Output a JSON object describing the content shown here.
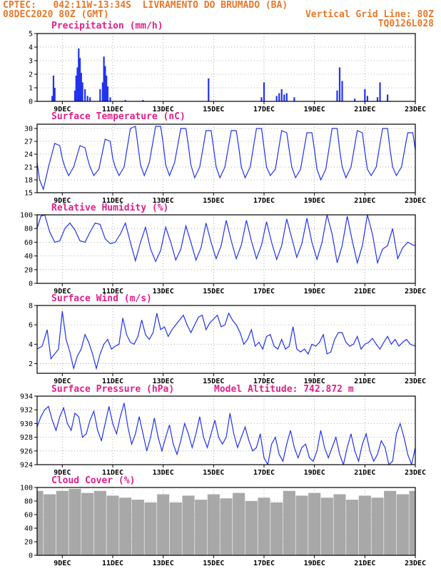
{
  "header": {
    "line1": "CPTEC:   042:11W-13:34S  LIVRAMENTO DO BRUMADO (BA)",
    "line2": "08DEC2020 80Z (GMT)",
    "right1": "Vertical Grid Line: 80Z",
    "right2": "TQ0126L028"
  },
  "colors": {
    "line": "#2233ee",
    "bar": "#2233ee",
    "cloud": "#a8a8a8",
    "title": "#e0208a",
    "header": "#e8782a"
  },
  "x_ticks": [
    "9DEC",
    "11DEC",
    "13DEC",
    "15DEC",
    "17DEC",
    "19DEC",
    "21DEC",
    "23DEC"
  ],
  "chart_data": [
    {
      "type": "bar",
      "title": "Precipitation (mm/h)",
      "x_range": [
        0,
        15
      ],
      "ylim": [
        0,
        5
      ],
      "yticks": [
        0,
        1,
        2,
        3,
        4,
        5
      ],
      "x": [
        0.6,
        0.65,
        0.7,
        1.5,
        1.55,
        1.6,
        1.65,
        1.7,
        1.75,
        1.8,
        1.9,
        2.0,
        2.1,
        2.5,
        2.6,
        2.65,
        2.7,
        2.75,
        2.8,
        2.9,
        3.5,
        4.2,
        6.8,
        8.9,
        9.0,
        9.5,
        9.6,
        9.7,
        9.8,
        9.9,
        10.2,
        11.9,
        12.0,
        12.1,
        12.6,
        13.0,
        13.1,
        13.5,
        13.6,
        13.9
      ],
      "values": [
        0.4,
        1.9,
        1.0,
        0.8,
        1.9,
        2.5,
        3.9,
        3.2,
        2.1,
        1.4,
        0.9,
        0.4,
        0.3,
        0.9,
        1.4,
        3.3,
        2.6,
        1.9,
        1.1,
        0.3,
        0.1,
        0.1,
        1.7,
        0.3,
        1.4,
        0.4,
        0.6,
        0.9,
        0.5,
        0.6,
        0.3,
        0.8,
        2.5,
        1.5,
        0.2,
        0.9,
        0.4,
        0.3,
        1.4,
        0.5
      ]
    },
    {
      "type": "line",
      "title": "Surface Temperature (nC)",
      "x_range": [
        0,
        15
      ],
      "ylim": [
        15,
        31
      ],
      "yticks": [
        15,
        18,
        21,
        24,
        27,
        30
      ],
      "x": [
        0,
        0.1,
        0.25,
        0.45,
        0.7,
        0.9,
        1.0,
        1.1,
        1.25,
        1.45,
        1.7,
        1.9,
        2.0,
        2.1,
        2.25,
        2.45,
        2.7,
        2.9,
        3.0,
        3.1,
        3.25,
        3.45,
        3.7,
        3.9,
        4.0,
        4.1,
        4.25,
        4.45,
        4.7,
        4.9,
        5.0,
        5.1,
        5.25,
        5.45,
        5.7,
        5.9,
        6.0,
        6.1,
        6.25,
        6.45,
        6.7,
        6.9,
        7.0,
        7.1,
        7.25,
        7.45,
        7.7,
        7.9,
        8.0,
        8.1,
        8.25,
        8.45,
        8.7,
        8.9,
        9.0,
        9.1,
        9.25,
        9.45,
        9.7,
        9.9,
        10.0,
        10.1,
        10.25,
        10.45,
        10.7,
        10.9,
        11.0,
        11.1,
        11.25,
        11.45,
        11.7,
        11.9,
        12.0,
        12.1,
        12.25,
        12.45,
        12.7,
        12.9,
        13.0,
        13.1,
        13.25,
        13.45,
        13.7,
        13.9,
        14.0,
        14.1,
        14.25,
        14.45,
        14.7,
        14.9,
        15.0
      ],
      "values": [
        22,
        18,
        15.8,
        21,
        26.5,
        26,
        23,
        21,
        19,
        21,
        26,
        25.5,
        23,
        21,
        19,
        20.5,
        27.5,
        27,
        23,
        21,
        19,
        21,
        30,
        30.5,
        26,
        21.5,
        19,
        22,
        30.5,
        30.5,
        26.5,
        21.5,
        19,
        22,
        30,
        30,
        26,
        21.5,
        18.5,
        21,
        29.5,
        29.5,
        25.5,
        21,
        18.5,
        21,
        29.5,
        29.5,
        25.5,
        21,
        18.5,
        21,
        30,
        30,
        25.5,
        21,
        19,
        20.5,
        29.5,
        29,
        25,
        21,
        18.5,
        20.5,
        29,
        29,
        25,
        20.5,
        18,
        20.5,
        30,
        30,
        25,
        21,
        18.5,
        21,
        29.5,
        29,
        24.5,
        20.5,
        19,
        21,
        30,
        30,
        25,
        21,
        19,
        21,
        29,
        29,
        25
      ]
    },
    {
      "type": "line",
      "title": "Relative Humidity (%)",
      "x_range": [
        0,
        15
      ],
      "ylim": [
        0,
        100
      ],
      "yticks": [
        0,
        20,
        40,
        60,
        80,
        100
      ],
      "x": [
        0,
        0.15,
        0.3,
        0.5,
        0.7,
        0.9,
        1.1,
        1.3,
        1.5,
        1.7,
        1.9,
        2.1,
        2.3,
        2.5,
        2.7,
        2.9,
        3.1,
        3.3,
        3.5,
        3.7,
        3.9,
        4.1,
        4.3,
        4.5,
        4.7,
        4.9,
        5.1,
        5.3,
        5.5,
        5.7,
        5.9,
        6.1,
        6.3,
        6.5,
        6.7,
        6.9,
        7.1,
        7.3,
        7.5,
        7.7,
        7.9,
        8.1,
        8.3,
        8.5,
        8.7,
        8.9,
        9.1,
        9.3,
        9.5,
        9.7,
        9.9,
        10.1,
        10.3,
        10.5,
        10.7,
        10.9,
        11.1,
        11.3,
        11.5,
        11.7,
        11.9,
        12.1,
        12.3,
        12.5,
        12.7,
        12.9,
        13.1,
        13.3,
        13.5,
        13.7,
        13.9,
        14.1,
        14.3,
        14.5,
        14.7,
        14.9,
        15.0
      ],
      "values": [
        80,
        98,
        100,
        75,
        60,
        62,
        80,
        88,
        78,
        62,
        60,
        75,
        88,
        86,
        65,
        58,
        60,
        72,
        88,
        60,
        33,
        60,
        82,
        50,
        32,
        48,
        82,
        60,
        34,
        50,
        84,
        60,
        34,
        52,
        88,
        60,
        36,
        55,
        92,
        62,
        36,
        56,
        92,
        62,
        36,
        56,
        90,
        60,
        35,
        55,
        94,
        66,
        38,
        58,
        95,
        60,
        35,
        60,
        100,
        72,
        30,
        55,
        98,
        62,
        30,
        55,
        100,
        72,
        30,
        50,
        55,
        80,
        36,
        52,
        60,
        56,
        55
      ]
    },
    {
      "type": "line",
      "title": "Surface Wind (m/s)",
      "x_range": [
        0,
        15
      ],
      "ylim": [
        1,
        8
      ],
      "yticks": [
        2,
        4,
        6,
        8
      ],
      "x": [
        0,
        0.2,
        0.4,
        0.55,
        0.7,
        0.85,
        1.0,
        1.15,
        1.3,
        1.45,
        1.6,
        1.75,
        1.9,
        2.05,
        2.2,
        2.35,
        2.5,
        2.65,
        2.8,
        2.95,
        3.1,
        3.25,
        3.4,
        3.55,
        3.7,
        3.85,
        4.0,
        4.15,
        4.3,
        4.45,
        4.6,
        4.75,
        4.9,
        5.05,
        5.2,
        5.35,
        5.5,
        5.65,
        5.8,
        5.95,
        6.1,
        6.25,
        6.4,
        6.55,
        6.7,
        6.85,
        7.0,
        7.15,
        7.3,
        7.45,
        7.6,
        7.75,
        7.9,
        8.05,
        8.2,
        8.35,
        8.5,
        8.65,
        8.8,
        8.95,
        9.1,
        9.25,
        9.4,
        9.55,
        9.7,
        9.85,
        10.0,
        10.15,
        10.3,
        10.45,
        10.6,
        10.75,
        10.9,
        11.05,
        11.2,
        11.35,
        11.5,
        11.65,
        11.8,
        11.95,
        12.1,
        12.25,
        12.4,
        12.55,
        12.7,
        12.85,
        13.0,
        13.15,
        13.3,
        13.45,
        13.6,
        13.75,
        13.9,
        14.05,
        14.2,
        14.35,
        14.5,
        14.65,
        14.8,
        15.0
      ],
      "values": [
        3.5,
        3.8,
        5.5,
        2.5,
        3.0,
        3.5,
        7.4,
        4.5,
        3.2,
        1.5,
        2.8,
        3.5,
        5.0,
        4.2,
        3.0,
        1.5,
        3.0,
        4.0,
        4.5,
        3.5,
        3.8,
        4.0,
        6.7,
        5.0,
        4.2,
        4.0,
        4.8,
        6.5,
        5.0,
        4.5,
        5.2,
        7.2,
        5.5,
        5.8,
        4.8,
        5.5,
        6.0,
        6.5,
        7.0,
        6.0,
        5.2,
        6.0,
        6.8,
        7.0,
        5.5,
        6.2,
        6.6,
        7.0,
        5.8,
        6.0,
        7.2,
        6.5,
        6.0,
        5.2,
        4.0,
        4.5,
        5.5,
        3.8,
        4.2,
        3.5,
        4.8,
        5.0,
        3.8,
        3.5,
        4.5,
        3.5,
        3.8,
        5.8,
        3.5,
        3.2,
        3.5,
        3.0,
        4.0,
        3.8,
        4.2,
        5.0,
        3.0,
        3.2,
        4.5,
        5.2,
        5.2,
        4.2,
        3.8,
        4.0,
        4.8,
        3.5,
        4.0,
        4.2,
        4.6,
        4.0,
        3.5,
        4.2,
        4.8,
        4.0,
        4.5,
        3.8,
        4.2,
        4.5,
        4.0,
        3.8
      ]
    },
    {
      "type": "line",
      "title": "Surface Pressure (hPa)",
      "annotation": "Model Altitude: 742.872 m",
      "x_range": [
        0,
        15
      ],
      "ylim": [
        924,
        934
      ],
      "yticks": [
        924,
        926,
        928,
        930,
        932,
        934
      ],
      "x": [
        0,
        0.15,
        0.3,
        0.45,
        0.6,
        0.75,
        0.9,
        1.05,
        1.2,
        1.35,
        1.5,
        1.65,
        1.8,
        1.95,
        2.1,
        2.25,
        2.4,
        2.55,
        2.7,
        2.85,
        3.0,
        3.15,
        3.3,
        3.45,
        3.6,
        3.75,
        3.9,
        4.05,
        4.2,
        4.35,
        4.5,
        4.65,
        4.8,
        4.95,
        5.1,
        5.25,
        5.4,
        5.55,
        5.7,
        5.85,
        6.0,
        6.15,
        6.3,
        6.45,
        6.6,
        6.75,
        6.9,
        7.05,
        7.2,
        7.35,
        7.5,
        7.65,
        7.8,
        7.95,
        8.1,
        8.25,
        8.4,
        8.55,
        8.7,
        8.85,
        9.0,
        9.15,
        9.3,
        9.45,
        9.6,
        9.75,
        9.9,
        10.05,
        10.2,
        10.35,
        10.5,
        10.65,
        10.8,
        10.95,
        11.1,
        11.25,
        11.4,
        11.55,
        11.7,
        11.85,
        12.0,
        12.15,
        12.3,
        12.45,
        12.6,
        12.75,
        12.9,
        13.05,
        13.2,
        13.35,
        13.5,
        13.65,
        13.8,
        13.95,
        14.1,
        14.25,
        14.4,
        14.55,
        14.7,
        14.85,
        15.0
      ],
      "values": [
        929.5,
        931.0,
        932.0,
        932.5,
        930.5,
        929.0,
        931.0,
        932.3,
        930.0,
        929.0,
        931.5,
        931.0,
        928.0,
        928.5,
        930.5,
        931.8,
        929.0,
        927.5,
        930.0,
        932.5,
        930.0,
        928.5,
        931.0,
        933.0,
        929.5,
        927.0,
        928.5,
        931.0,
        928.5,
        926.0,
        928.0,
        930.8,
        928.0,
        926.0,
        928.0,
        929.8,
        927.0,
        925.5,
        927.5,
        930.0,
        928.5,
        926.5,
        928.5,
        931.0,
        928.0,
        926.5,
        928.5,
        930.5,
        928.0,
        927.0,
        928.0,
        931.5,
        928.5,
        926.5,
        928.0,
        929.5,
        927.5,
        926.0,
        926.5,
        928.5,
        925.0,
        924.0,
        927.0,
        928.0,
        925.5,
        924.5,
        927.0,
        929.0,
        926.5,
        925.0,
        926.5,
        927.0,
        925.0,
        924.5,
        926.0,
        929.0,
        926.5,
        925.0,
        926.5,
        928.0,
        925.5,
        924.0,
        926.5,
        928.5,
        926.0,
        924.5,
        927.0,
        928.5,
        926.0,
        924.5,
        925.5,
        927.5,
        926.5,
        924.0,
        924.5,
        928.5,
        930.0,
        928.0,
        925.5,
        924.0,
        926.5
      ]
    },
    {
      "type": "bar",
      "title": "Cloud Cover (%)",
      "x_range": [
        0,
        15
      ],
      "ylim": [
        0,
        100
      ],
      "yticks": [
        0,
        20,
        40,
        60,
        80,
        100
      ],
      "x": [
        0,
        0.5,
        1.0,
        1.5,
        2.0,
        2.5,
        3.0,
        3.5,
        4.0,
        4.5,
        5.0,
        5.5,
        6.0,
        6.5,
        7.0,
        7.5,
        8.0,
        8.5,
        9.0,
        9.5,
        10.0,
        10.5,
        11.0,
        11.5,
        12.0,
        12.5,
        13.0,
        13.5,
        14.0,
        14.5,
        15.0
      ],
      "values": [
        95,
        90,
        95,
        98,
        92,
        95,
        88,
        85,
        82,
        78,
        90,
        78,
        88,
        82,
        90,
        84,
        92,
        80,
        85,
        78,
        95,
        88,
        92,
        85,
        90,
        82,
        88,
        85,
        95,
        90,
        95
      ]
    }
  ]
}
